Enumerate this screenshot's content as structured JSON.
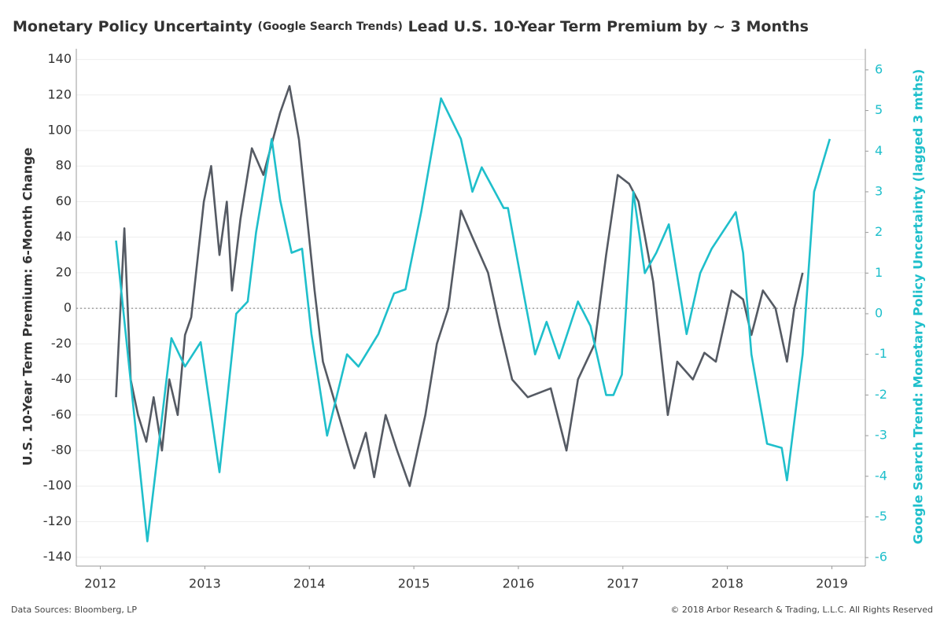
{
  "chart_data": {
    "type": "line",
    "title": [
      "Monetary Policy Uncertainty",
      "(Google Search Trends)",
      "Lead U.S. 10-Year Term Premium by ~ 3 Months"
    ],
    "ylabel": "U.S. 10-Year Term Premium: 6-Month Change",
    "y2label": "Google Search Trend: Monetary Policy Uncertainty (lagged 3 mths)",
    "source": "Data Sources: Bloomberg, LP",
    "copyright": "© 2018 Arbor Research & Trading, L.L.C. All Rights Reserved",
    "xlim": [
      2011.77,
      2019.32
    ],
    "xticks": [
      2012,
      2013,
      2014,
      2015,
      2016,
      2017,
      2018,
      2019
    ],
    "ylim": [
      -145,
      146
    ],
    "yticks": [
      -140,
      -120,
      -100,
      -80,
      -60,
      -40,
      -20,
      0,
      20,
      40,
      60,
      80,
      100,
      120,
      140
    ],
    "y2lim": [
      -6.21,
      6.52
    ],
    "y2ticks": [
      -6,
      -5,
      -4,
      -3,
      -2,
      -1,
      0,
      1,
      2,
      3,
      4,
      5,
      6
    ],
    "grid": true,
    "zero_line": true,
    "series": [
      {
        "color": "#555a63",
        "axis": "y",
        "x": [
          2012.15,
          2012.23,
          2012.29,
          2012.36,
          2012.44,
          2012.51,
          2012.59,
          2012.66,
          2012.74,
          2012.81,
          2012.87,
          2012.99,
          2013.06,
          2013.14,
          2013.21,
          2013.26,
          2013.34,
          2013.45,
          2013.56,
          2013.72,
          2013.81,
          2013.9,
          2013.98,
          2014.05,
          2014.13,
          2014.28,
          2014.43,
          2014.54,
          2014.62,
          2014.73,
          2014.84,
          2014.96,
          2015.11,
          2015.22,
          2015.33,
          2015.45,
          2015.56,
          2015.71,
          2015.82,
          2015.94,
          2016.09,
          2016.31,
          2016.46,
          2016.57,
          2016.73,
          2016.84,
          2016.95,
          2017.06,
          2017.15,
          2017.29,
          2017.43,
          2017.52,
          2017.67,
          2017.78,
          2017.89,
          2018.04,
          2018.15,
          2018.23,
          2018.34,
          2018.46,
          2018.57,
          2018.64,
          2018.72
        ],
        "values": [
          -50,
          45,
          -40,
          -60,
          -75,
          -50,
          -80,
          -40,
          -60,
          -15,
          -5,
          60,
          80,
          30,
          60,
          10,
          50,
          90,
          75,
          110,
          125,
          95,
          50,
          10,
          -30,
          -60,
          -90,
          -70,
          -95,
          -60,
          -80,
          -100,
          -60,
          -20,
          0,
          55,
          40,
          20,
          -10,
          -40,
          -50,
          -45,
          -80,
          -40,
          -20,
          30,
          75,
          70,
          60,
          15,
          -60,
          -30,
          -40,
          -25,
          -30,
          10,
          5,
          -15,
          10,
          0,
          -30,
          0,
          20
        ]
      },
      {
        "color": "#1fbfcb",
        "axis": "y2",
        "x": [
          2012.15,
          2012.45,
          2012.68,
          2012.81,
          2012.96,
          2013.14,
          2013.3,
          2013.41,
          2013.49,
          2013.64,
          2013.72,
          2013.83,
          2013.93,
          2014.02,
          2014.17,
          2014.36,
          2014.47,
          2014.66,
          2014.81,
          2014.92,
          2015.07,
          2015.26,
          2015.45,
          2015.56,
          2015.65,
          2015.86,
          2015.9,
          2016.05,
          2016.16,
          2016.27,
          2016.39,
          2016.57,
          2016.69,
          2016.84,
          2016.91,
          2016.99,
          2017.1,
          2017.21,
          2017.32,
          2017.44,
          2017.61,
          2017.74,
          2017.85,
          2018.08,
          2018.15,
          2018.23,
          2018.38,
          2018.52,
          2018.57,
          2018.72,
          2018.83,
          2018.98
        ],
        "values": [
          1.8,
          -5.6,
          -0.6,
          -1.3,
          -0.7,
          -3.9,
          0,
          0.3,
          2,
          4.3,
          2.8,
          1.5,
          1.6,
          -0.5,
          -3,
          -1,
          -1.3,
          -0.5,
          0.5,
          0.6,
          2.5,
          5.3,
          4.3,
          3,
          3.6,
          2.6,
          2.6,
          0.5,
          -1,
          -0.2,
          -1.1,
          0.3,
          -0.3,
          -2,
          -2,
          -1.5,
          3,
          1,
          1.5,
          2.2,
          -0.5,
          1,
          1.6,
          2.5,
          1.5,
          -1,
          -3.2,
          -3.3,
          -4.1,
          -1,
          3,
          4.3
        ]
      }
    ]
  }
}
